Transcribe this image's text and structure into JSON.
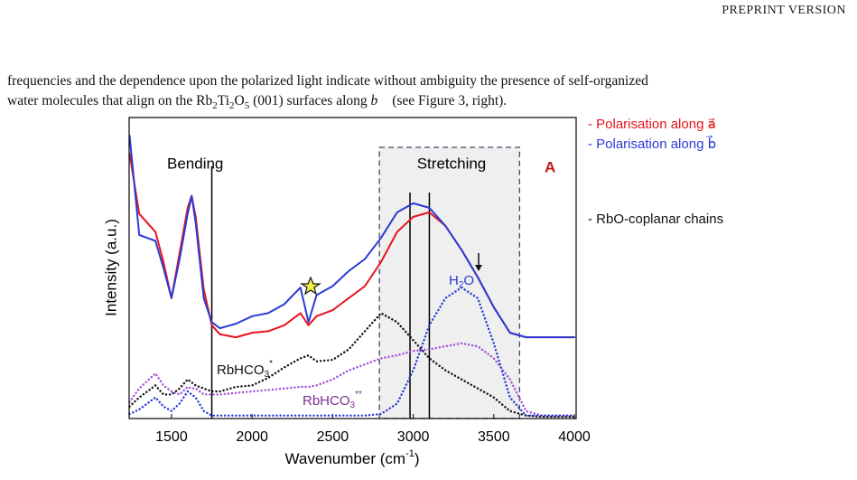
{
  "header": {
    "title": "PREPRINT VERSION"
  },
  "paragraph": {
    "line1": "frequencies and the dependence upon the polarized light indicate without ambiguity the presence of self-organized",
    "line2": [
      "water molecules that align on the Rb",
      "2",
      "Ti",
      "2",
      "O",
      "5",
      " (001) surfaces along ",
      "b⃗",
      " (see Figure 3, right)."
    ]
  },
  "chart_data": {
    "type": "line",
    "panel_label": "A",
    "regions": [
      "Bending",
      "Stretching"
    ],
    "x_label": [
      "Wavenumber (cm",
      "-1",
      ")"
    ],
    "y_label": "Intensity (a.u.)",
    "annotations": {
      "h2o": [
        "H",
        "2",
        "O"
      ],
      "rbhco3_a": [
        "RbHCO",
        "3",
        "*"
      ],
      "rbhco3_b": [
        "RbHCO",
        "3",
        "**"
      ],
      "chains": "- RbO-coplanar chains"
    },
    "xlim": [
      1237,
      4011
    ],
    "ylim": [
      0,
      100
    ],
    "xticks": [
      1500,
      2000,
      2500,
      3000,
      3500,
      4000
    ],
    "vlines": [
      1750,
      2980,
      3100
    ],
    "stretch_region": [
      2790,
      3660
    ],
    "x": [
      1240,
      1300,
      1400,
      1450,
      1500,
      1550,
      1600,
      1625,
      1650,
      1700,
      1750,
      1800,
      1900,
      2000,
      2100,
      2200,
      2300,
      2350,
      2400,
      2500,
      2600,
      2700,
      2800,
      2900,
      3000,
      3100,
      3200,
      3300,
      3400,
      3500,
      3600,
      3700,
      3800,
      3900,
      4000
    ],
    "series": [
      {
        "name": "- Polarisation along a⃗",
        "color": "#e8141b",
        "dash": "solid",
        "values": [
          88,
          68,
          62,
          52,
          40,
          55,
          70,
          74,
          67,
          43,
          31,
          28,
          27,
          28.5,
          29,
          31,
          35,
          31,
          34,
          36,
          40,
          44,
          52,
          62,
          67,
          68.5,
          64,
          56,
          47,
          37,
          28.5,
          27,
          27,
          27,
          27
        ]
      },
      {
        "name": "- Polarisation along b⃗",
        "color": "#2a3ad6",
        "dash": "solid",
        "values": [
          94,
          61,
          59,
          50,
          40,
          53,
          68,
          74,
          65,
          40,
          32,
          30,
          31.5,
          34,
          35,
          38,
          43.5,
          32,
          41,
          44,
          49,
          53,
          60,
          68.5,
          71.5,
          70,
          64,
          56,
          47,
          37,
          28.5,
          27,
          27,
          27,
          27
        ]
      },
      {
        "color": "#111111",
        "dash": "dotted",
        "values": [
          4,
          7,
          11,
          8,
          8,
          10,
          13,
          12,
          11,
          10,
          9,
          9,
          10.5,
          11,
          13.5,
          17,
          20,
          21,
          19,
          19.5,
          23,
          29,
          35,
          32,
          26,
          20,
          16,
          13,
          10,
          7,
          2.5,
          1,
          0.6,
          0.6,
          0.6
        ]
      },
      {
        "color": "#a24fd6",
        "dash": "dotted",
        "values": [
          5.5,
          10,
          15,
          11,
          9,
          8,
          10.5,
          10,
          10,
          8,
          8,
          8,
          8.5,
          9,
          9.5,
          10,
          10.5,
          10.5,
          11,
          13,
          16,
          18,
          20,
          21,
          22.5,
          23,
          24,
          25,
          24,
          20,
          13,
          2.5,
          1,
          1,
          1
        ]
      },
      {
        "color": "#2a3ad6",
        "dash": "dotted",
        "values": [
          1.5,
          3,
          7,
          4,
          2.5,
          5,
          9,
          8,
          7,
          2.5,
          1,
          1,
          1,
          1,
          1,
          1,
          1,
          1,
          1,
          1,
          1,
          1,
          1.5,
          5,
          16,
          31,
          40,
          43.5,
          40,
          25,
          7,
          1,
          1,
          1,
          1
        ]
      }
    ]
  }
}
